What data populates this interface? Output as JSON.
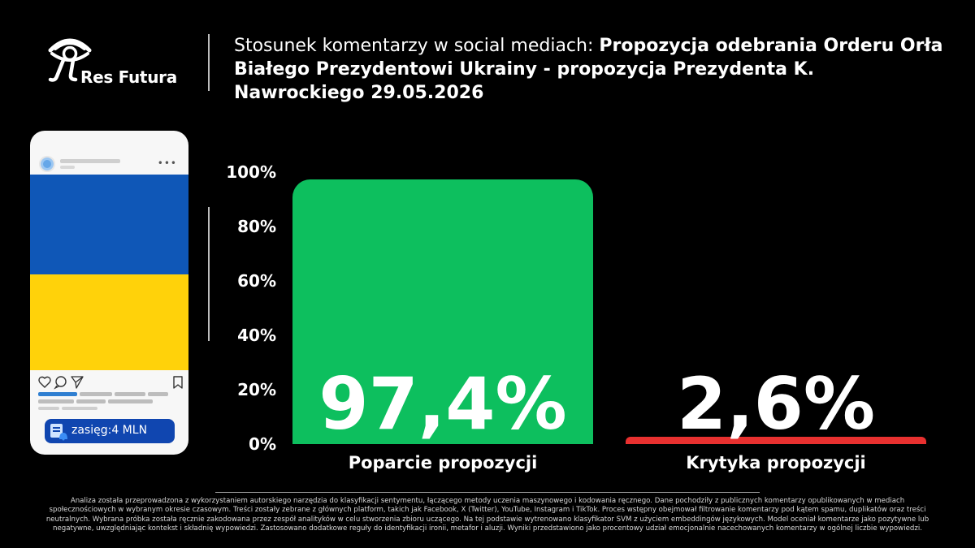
{
  "brand": {
    "name": "Res Futura"
  },
  "title": {
    "regular": "Stosunek komentarzy w social mediach: ",
    "bold": "Propozycja odebrania Orderu Orła Białego Prezydentowi Ukrainy - propozycja Prezydenta K. Nawrockiego 29.05.2026"
  },
  "phone": {
    "reach_label": "zasięg:4 MLN",
    "flag_colors": {
      "top": "#0f57b7",
      "bottom": "#ffd20a"
    },
    "icons": [
      "heart-icon",
      "comment-icon",
      "share-icon",
      "bookmark-icon",
      "notification-icon"
    ]
  },
  "chart_data": {
    "type": "bar",
    "categories": [
      "Poparcie propozycji",
      "Krytyka propozycji"
    ],
    "values": [
      97.4,
      2.6
    ],
    "value_labels": [
      "97,4%",
      "2,6%"
    ],
    "colors": [
      "#0dbf5e",
      "#e8302f"
    ],
    "ylim": [
      0,
      100
    ],
    "yticks": [
      "0%",
      "20%",
      "40%",
      "60%",
      "80%",
      "100%"
    ],
    "grid": false,
    "legend": "none"
  },
  "footnote": "Analiza została przeprowadzona z wykorzystaniem autorskiego narzędzia do klasyfikacji sentymentu, łączącego metody uczenia maszynowego i kodowania ręcznego. Dane pochodziły z publicznych komentarzy opublikowanych w mediach społecznościowych w wybranym okresie czasowym. Treści zostały zebrane z głównych platform, takich jak Facebook, X (Twitter), YouTube, Instagram i TikTok. Proces wstępny obejmował filtrowanie komentarzy pod kątem spamu, duplikatów oraz treści neutralnych. Wybrana próbka została ręcznie zakodowana przez zespół analityków w celu stworzenia zbioru uczącego. Na tej podstawie wytrenowano klasyfikator SVM z użyciem embeddingów językowych. Model oceniał komentarze jako pozytywne lub negatywne, uwzględniając kontekst i składnię wypowiedzi. Zastosowano dodatkowe reguły do identyfikacji ironii, metafor i aluzji. Wyniki przedstawiono jako procentowy udział emocjonalnie nacechowanych komentarzy w ogólnej liczbie wypowiedzi."
}
